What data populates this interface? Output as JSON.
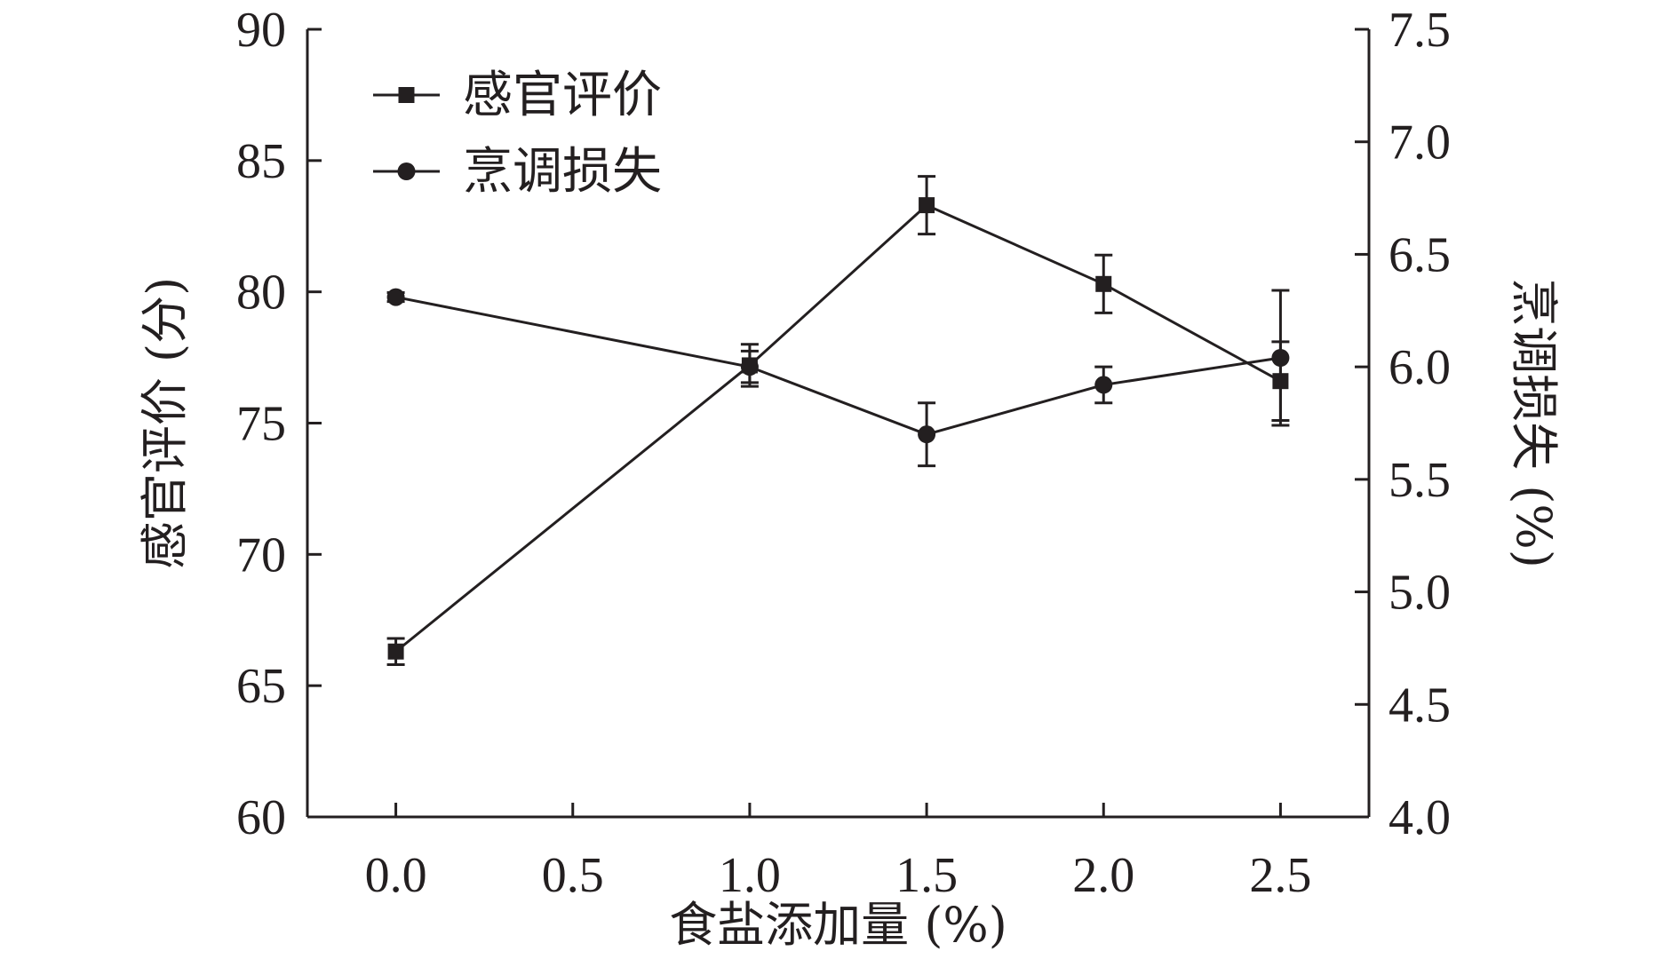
{
  "chart_data": {
    "type": "line",
    "x_axis": {
      "label": "食盐添加量 (%)",
      "ticks": [
        "0.0",
        "0.5",
        "1.0",
        "1.5",
        "2.0",
        "2.5"
      ],
      "range": [
        -0.25,
        2.75
      ]
    },
    "y_axis_left": {
      "label": "感官评价 (分)",
      "ticks": [
        "60",
        "65",
        "70",
        "75",
        "80",
        "85",
        "90"
      ],
      "range": [
        60,
        90
      ]
    },
    "y_axis_right": {
      "label": "烹调损失 (%)",
      "ticks": [
        "4.0",
        "4.5",
        "5.0",
        "5.5",
        "6.0",
        "6.5",
        "7.0",
        "7.5"
      ],
      "range": [
        4.0,
        7.5
      ]
    },
    "legend": {
      "placement": "top-left",
      "entries": [
        "感官评价",
        "烹调损失"
      ]
    },
    "grid": false,
    "series": [
      {
        "name": "感官评价",
        "marker": "square",
        "axis": "left",
        "x": [
          0.0,
          1.0,
          1.5,
          2.0,
          2.5
        ],
        "values": [
          66.3,
          77.2,
          83.3,
          80.3,
          76.6
        ],
        "error": [
          0.5,
          0.8,
          1.1,
          1.1,
          1.5
        ]
      },
      {
        "name": "烹调损失",
        "marker": "circle",
        "axis": "right",
        "x": [
          0.0,
          1.0,
          1.5,
          2.0,
          2.5
        ],
        "values": [
          6.31,
          6.0,
          5.7,
          5.92,
          6.04
        ],
        "error": [
          0.02,
          0.07,
          0.14,
          0.08,
          0.3
        ]
      }
    ]
  }
}
